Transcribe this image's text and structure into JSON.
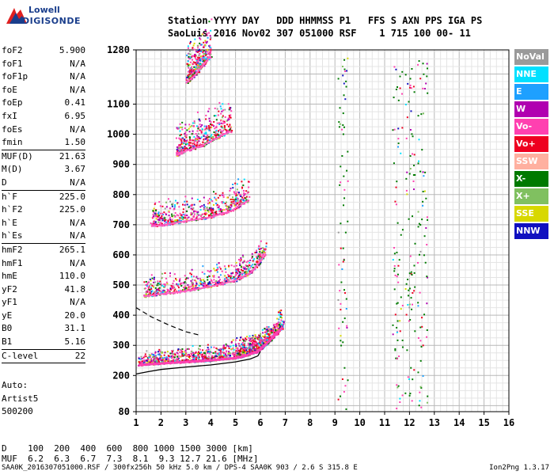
{
  "logo": {
    "line1": "Lowell",
    "line2": "DIGISONDE"
  },
  "header": {
    "line1": "Station YYYY DAY   DDD HHMMSS P1   FFS S AXN PPS IGA PS",
    "line2": "SaoLuis 2016 Nov02 307 051000 RSF    1 715 100 00- 11"
  },
  "params_group1": [
    {
      "name": "foF2",
      "value": "5.900"
    },
    {
      "name": "foF1",
      "value": "N/A"
    },
    {
      "name": "foF1p",
      "value": "N/A"
    },
    {
      "name": "foE",
      "value": "N/A"
    },
    {
      "name": "foEp",
      "value": "0.41"
    },
    {
      "name": "fxI",
      "value": "6.95"
    },
    {
      "name": "foEs",
      "value": "N/A"
    },
    {
      "name": "fmin",
      "value": "1.50"
    }
  ],
  "params_group2": [
    {
      "name": "MUF(D)",
      "value": "21.63"
    },
    {
      "name": "M(D)",
      "value": "3.67"
    },
    {
      "name": "D",
      "value": "N/A"
    }
  ],
  "params_group3": [
    {
      "name": "h`F",
      "value": "225.0"
    },
    {
      "name": "h`F2",
      "value": "225.0"
    },
    {
      "name": "h`E",
      "value": "N/A"
    },
    {
      "name": "h`Es",
      "value": "N/A"
    }
  ],
  "params_group4": [
    {
      "name": "hmF2",
      "value": "265.1"
    },
    {
      "name": "hmF1",
      "value": "N/A"
    },
    {
      "name": "hmE",
      "value": "110.0"
    },
    {
      "name": "yF2",
      "value": "41.8"
    },
    {
      "name": "yF1",
      "value": "N/A"
    },
    {
      "name": "yE",
      "value": "20.0"
    },
    {
      "name": "B0",
      "value": "31.1"
    },
    {
      "name": "B1",
      "value": "5.16"
    }
  ],
  "params_group5": [
    {
      "name": "C-level",
      "value": "22"
    }
  ],
  "auto_block": "Auto:\nArtist5\n500200",
  "legend": [
    {
      "label": "NoVal",
      "color": "#9a9a9a"
    },
    {
      "label": "NNE",
      "color": "#00e0ff"
    },
    {
      "label": "E",
      "color": "#1ea0ff"
    },
    {
      "label": "W",
      "color": "#b000b0"
    },
    {
      "label": "Vo-",
      "color": "#ff40b0"
    },
    {
      "label": "Vo+",
      "color": "#ee0020"
    },
    {
      "label": "SSW",
      "color": "#ffb0a0"
    },
    {
      "label": "X-",
      "color": "#007a00"
    },
    {
      "label": "X+",
      "color": "#80c060"
    },
    {
      "label": "SSE",
      "color": "#d8d800"
    },
    {
      "label": "NNW",
      "color": "#1010c0"
    }
  ],
  "dmuf": {
    "d_line": "D    100  200  400  600  800 1000 1500 3000 [km]",
    "muf_line": "MUF  6.2  6.3  6.7  7.3  8.1  9.3 12.7 21.6 [MHz]"
  },
  "footer": "SAA0K_2016307051000.RSF / 300fx256h 50 kHz 5.0 km / DPS-4 SAA0K 903 / 2.6 S 315.8 E",
  "version": "Ion2Png 1.3.17",
  "chart_data": {
    "type": "scatter",
    "title": "",
    "xlabel": "",
    "ylabel": "",
    "xlim": [
      1,
      16
    ],
    "ylim": [
      80,
      1280
    ],
    "x_ticks": [
      1,
      2,
      3,
      4,
      5,
      6,
      7,
      8,
      9,
      10,
      11,
      12,
      13,
      14,
      15,
      16
    ],
    "y_ticks": [
      80,
      200,
      300,
      400,
      500,
      600,
      700,
      800,
      900,
      1000,
      1100,
      1280
    ],
    "grid": true,
    "traces": [
      {
        "name": "F-trace 1st hop",
        "x": [
          1.1,
          2.0,
          3.0,
          4.0,
          5.0,
          5.5,
          5.9,
          6.3,
          6.9
        ],
        "y": [
          235,
          240,
          245,
          250,
          258,
          268,
          280,
          310,
          360
        ]
      },
      {
        "name": "F-trace 2nd hop",
        "x": [
          1.3,
          2.0,
          3.0,
          4.0,
          5.0,
          5.6,
          6.2
        ],
        "y": [
          462,
          470,
          480,
          495,
          515,
          540,
          600
        ]
      },
      {
        "name": "F-trace 3rd hop",
        "x": [
          1.6,
          2.2,
          3.0,
          4.0,
          4.8,
          5.5
        ],
        "y": [
          695,
          700,
          712,
          725,
          745,
          780
        ]
      },
      {
        "name": "F-trace 4th hop",
        "x": [
          2.6,
          3.0,
          3.6,
          4.2,
          4.8
        ],
        "y": [
          930,
          945,
          960,
          985,
          1010
        ]
      },
      {
        "name": "F-trace 5th hop",
        "x": [
          3.0,
          3.3,
          3.6,
          4.0
        ],
        "y": [
          1170,
          1190,
          1220,
          1260
        ]
      }
    ],
    "profile_solid": {
      "x": [
        1.0,
        1.5,
        2.0,
        3.0,
        4.0,
        5.0,
        5.6,
        5.9,
        6.0
      ],
      "y": [
        205,
        213,
        220,
        228,
        235,
        245,
        255,
        265,
        280
      ]
    },
    "profile_dashed": {
      "x": [
        1.0,
        1.6,
        2.3,
        3.0,
        3.5
      ],
      "y": [
        425,
        395,
        368,
        345,
        335
      ]
    },
    "vertical_traces_x": [
      9.3,
      11.5,
      12.0,
      12.5
    ]
  }
}
